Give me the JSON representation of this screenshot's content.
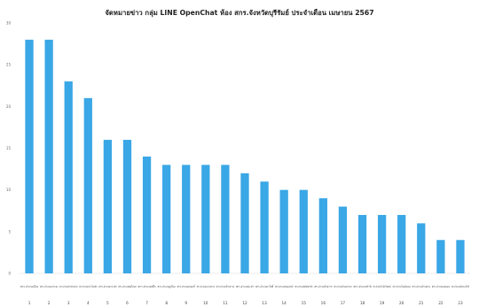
{
  "chart_data": {
    "type": "bar",
    "title": "จัดหมายข่าว กลุ่ม LINE OpenChat ห้อง สกร.จังหวัดบุรีรัมย์ ประจำเดือน เมษายน 2567",
    "xlabel": "",
    "ylabel": "",
    "ylim": [
      0,
      30
    ],
    "yticks": [
      0,
      5,
      10,
      15,
      20,
      25,
      30
    ],
    "ytick_labels": [
      "0",
      "5",
      "10",
      "15",
      "20",
      "25",
      "30"
    ],
    "grid": false,
    "legend": "none",
    "bar_color": "#3aa7e6",
    "categories": [
      "สกร.อำเภอเมือง",
      "สกร.อำเภอนางรอง",
      "สกร.อำเภอลำปลายมาศ",
      "สกร.อำเภอประโคนชัย",
      "สกร.อำเภอกระสัง",
      "สกร.อำเภอพุทไธสง",
      "สกร.อำเภอสตึก",
      "สกร.อำเภอคูเมือง",
      "สกร.อำเภอหนองกี่",
      "สกร.อำเภอละหานทราย",
      "สกร.อำเภอบ้านกรวด",
      "สกร.อำเภอปะคำ",
      "สกร.อำเภอนาโพธิ์",
      "สกร.อำเภอหนองหงส์",
      "สกร.อำเภอพลับพลาชัย",
      "สกร.อำเภอห้วยราช",
      "สกร.อำเภอโนนสุวรรณ",
      "สกร.อำเภอชำนิ",
      "สกร.อำเภอบ้านใหม่ไชยพจน์",
      "สกร.อำเภอโนนดินแดง",
      "สกร.อำเภอบ้านด่าน",
      "สกร.อำเภอแคนดง",
      "สกร.อำเภอเฉลิมพระเกียรติ"
    ],
    "ranks": [
      "1",
      "2",
      "3",
      "4",
      "5",
      "6",
      "7",
      "8",
      "9",
      "10",
      "11",
      "12",
      "13",
      "14",
      "15",
      "16",
      "17",
      "18",
      "19",
      "20",
      "21",
      "22",
      "23"
    ],
    "values": [
      28,
      28,
      23,
      21,
      16,
      16,
      14,
      13,
      13,
      13,
      13,
      12,
      11,
      10,
      10,
      9,
      8,
      7,
      7,
      7,
      6,
      4,
      4
    ]
  }
}
